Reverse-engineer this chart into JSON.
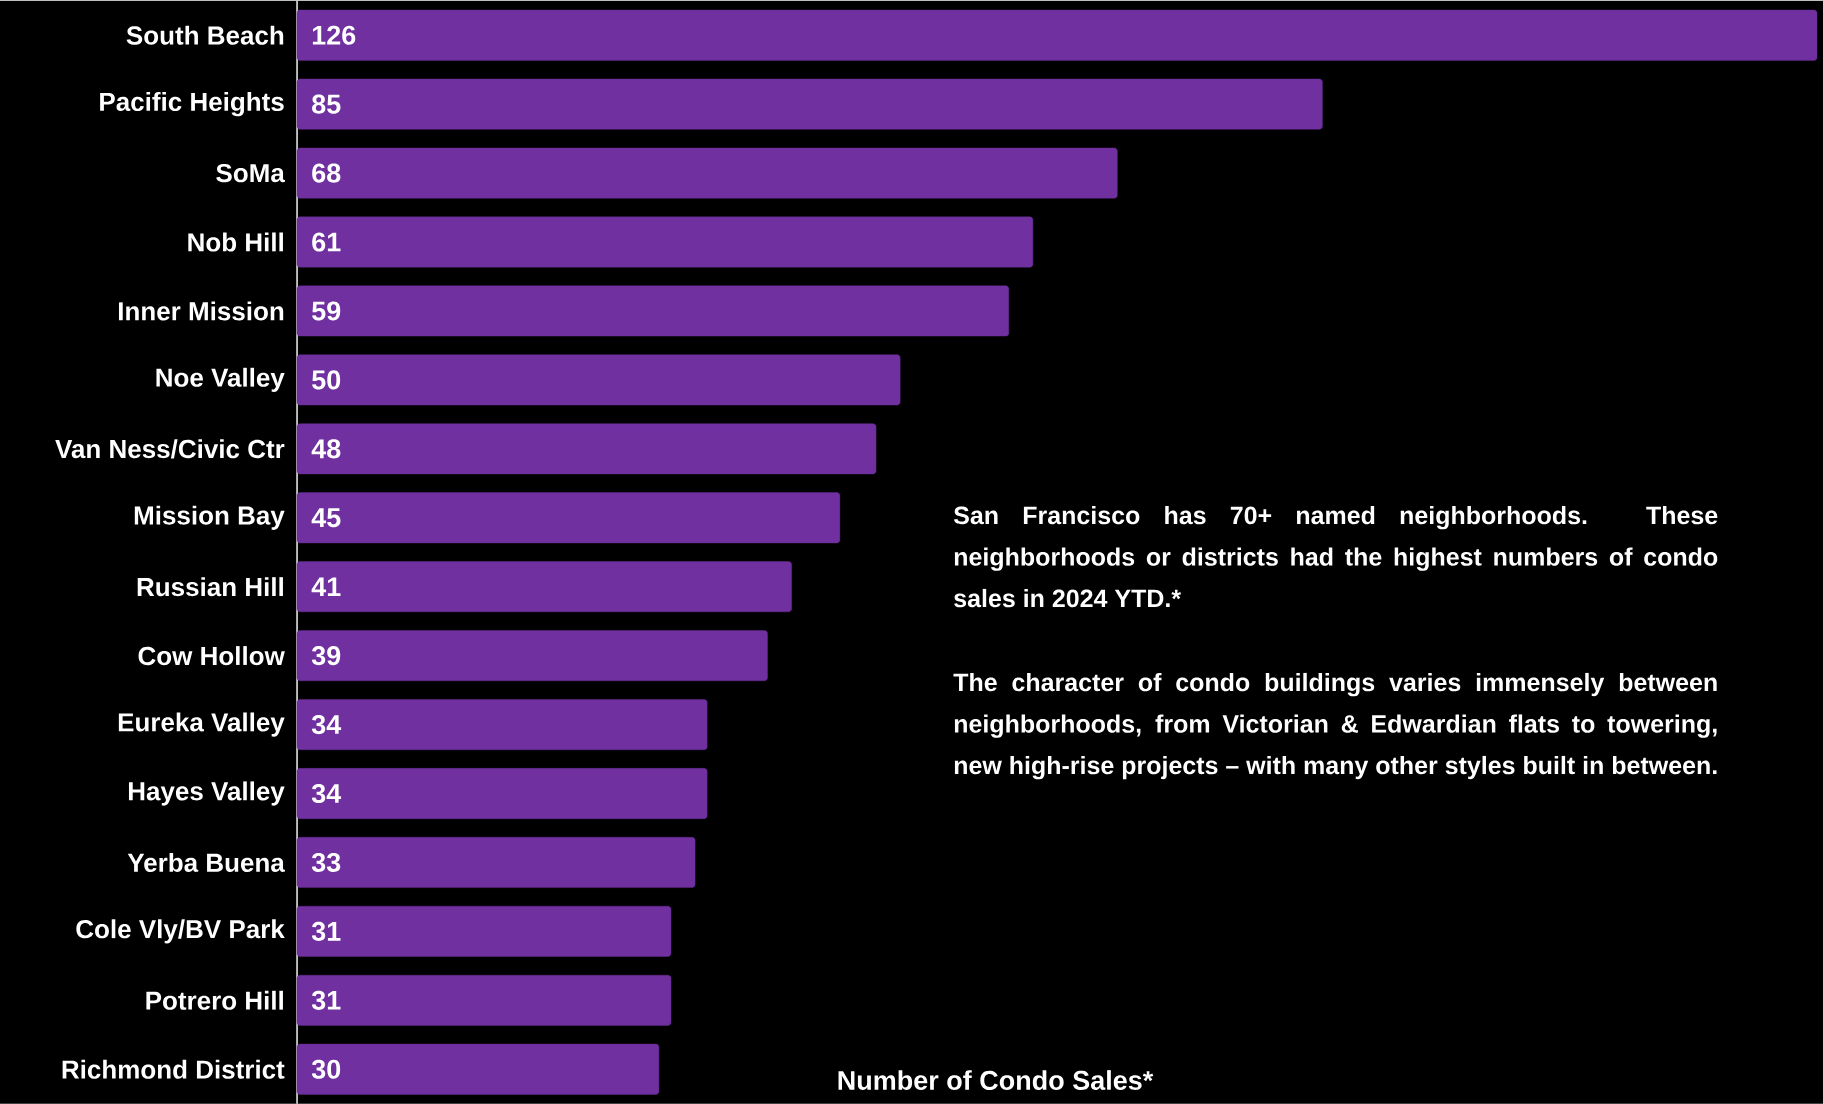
{
  "chart_data": {
    "type": "bar",
    "orientation": "horizontal",
    "data_labels": true,
    "color": "#7030a0",
    "categories": [
      "South Beach",
      "Pacific Heights",
      "SoMa",
      "Nob Hill",
      "Inner Mission",
      "Noe Valley",
      "Van Ness/Civic Ctr",
      "Mission Bay",
      "Russian Hill",
      "Cow Hollow",
      "Eureka Valley",
      "Hayes Valley",
      "Yerba Buena",
      "Cole Vly/BV Park",
      "Potrero Hill",
      "Richmond District"
    ],
    "values": [
      126,
      85,
      68,
      61,
      59,
      50,
      48,
      45,
      41,
      39,
      34,
      34,
      33,
      31,
      31,
      30
    ],
    "xlabel": "Number of Condo Sales*",
    "annotations": [
      "San Francisco has 70+ named neighborhoods. These neighborhoods or districts had the highest numbers of condo sales in 2024 YTD.*",
      "The character of condo buildings varies immensely between neighborhoods, from Victorian & Edwardian flats to towering, new high-rise projects – with many other styles built in between."
    ]
  }
}
